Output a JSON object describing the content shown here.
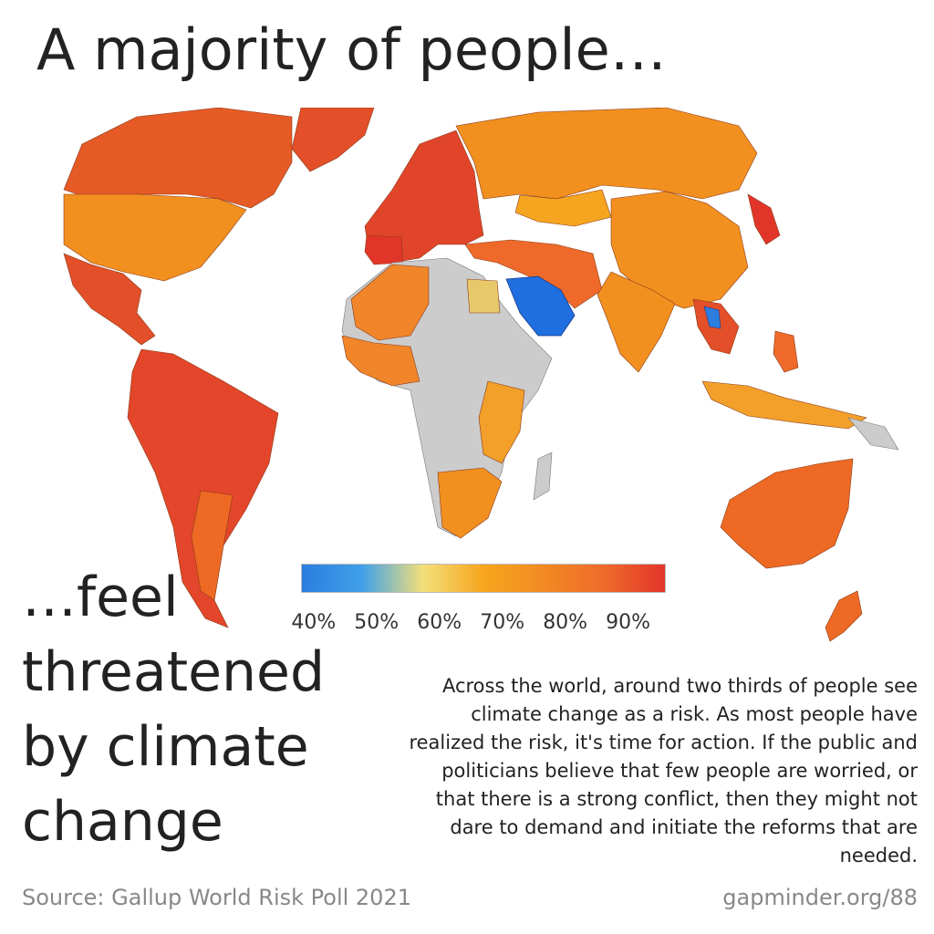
{
  "headline": "A majority of people…",
  "subhead": [
    "…feel",
    "threatened",
    "by climate",
    "change"
  ],
  "body_text": "Across the world, around two thirds of people see climate change as a risk. As most people have realized the risk, it's time for action. If the public and politicians believe that few people are worried, or that there is a strong conflict, then they might not dare to demand and initiate the reforms that are needed.",
  "source": "Source: Gallup World Risk Poll 2021",
  "site": "gapminder.org/88",
  "legend": {
    "ticks": [
      "40%",
      "50%",
      "60%",
      "70%",
      "80%",
      "90%"
    ],
    "tick_values": [
      40,
      50,
      60,
      70,
      80,
      90
    ],
    "range": [
      38,
      96
    ],
    "gradient": [
      "#2b7de0",
      "#40a0e8",
      "#f3e07a",
      "#f7a51e",
      "#f28a22",
      "#ef6a2a",
      "#e2352a"
    ]
  },
  "colors": {
    "no_data": "#cccccc",
    "saudi_arabia": "#1f6fe0",
    "egypt": "#e8c96a",
    "europe": "#e0452a",
    "russia_china": "#f2901f",
    "americas_south": "#e24f28",
    "africa_orange": "#f2a02a",
    "australia": "#ee6a24"
  }
}
